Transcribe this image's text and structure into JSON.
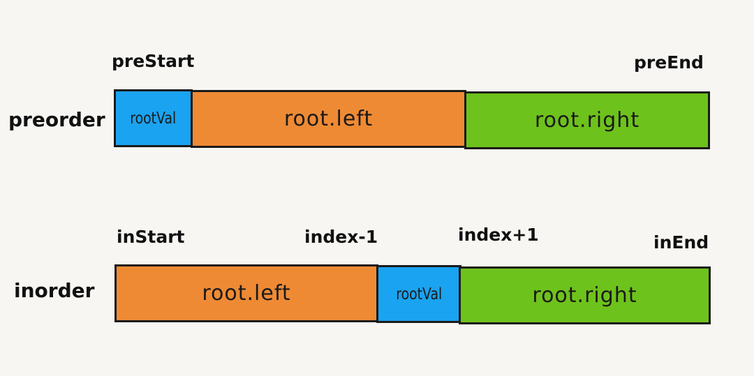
{
  "preorder": {
    "row_label": "preorder",
    "pointers": {
      "start": "preStart",
      "end": "preEnd"
    },
    "segments": [
      {
        "label": "rootVal",
        "color": "#1aa3f0"
      },
      {
        "label": "root.left",
        "color": "#ef8a34"
      },
      {
        "label": "root.right",
        "color": "#6ec21c"
      }
    ]
  },
  "inorder": {
    "row_label": "inorder",
    "pointers": {
      "start": "inStart",
      "index_minus": "index-1",
      "index_plus": "index+1",
      "end": "inEnd"
    },
    "segments": [
      {
        "label": "root.left",
        "color": "#ef8a34"
      },
      {
        "label": "rootVal",
        "color": "#1aa3f0"
      },
      {
        "label": "root.right",
        "color": "#6ec21c"
      }
    ]
  }
}
